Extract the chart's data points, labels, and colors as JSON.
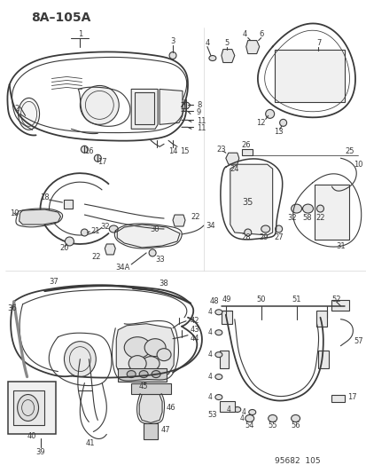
{
  "background": "#ffffff",
  "fig_width": 4.14,
  "fig_height": 5.33,
  "dpi": 100,
  "header_text": "8A–105A",
  "footer_text": "95682  105",
  "drawing_color": "#3a3a3a",
  "line_width": 0.8
}
